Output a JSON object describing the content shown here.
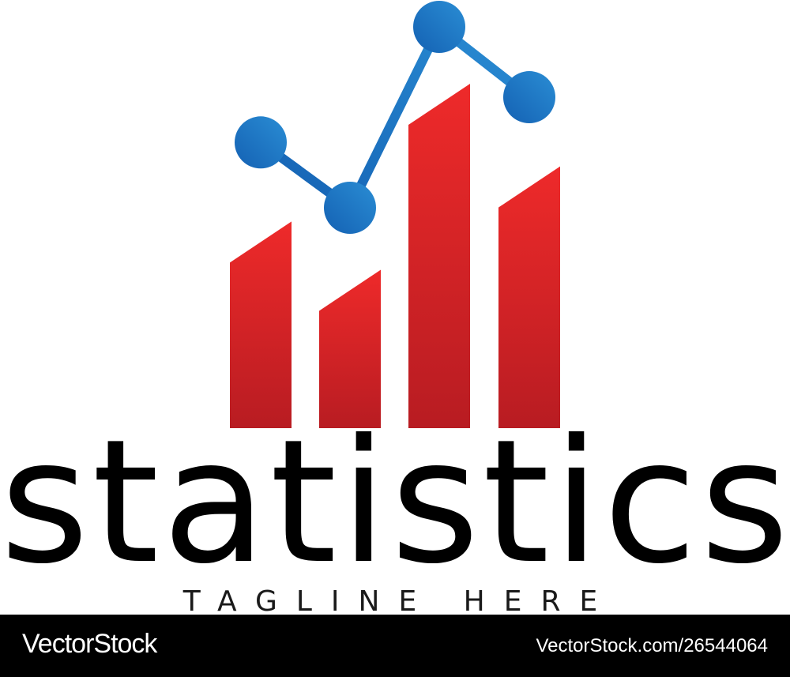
{
  "logo": {
    "icon": "bar-chart-with-trend-line-icon",
    "bar_levels": [
      0.6,
      0.46,
      1.0,
      0.76
    ],
    "line_levels": [
      0.77,
      0.64,
      1.0,
      0.86
    ],
    "colors": {
      "bar_top": "#ee2a2a",
      "bar_bottom": "#b81c22",
      "line_start": "#1461b3",
      "line_end": "#2a8dd4"
    }
  },
  "wordmark": "statistics",
  "tagline": "TAGLINE HERE",
  "footer": {
    "brand": "VectorStock",
    "image_id": "VectorStock.com/26544064",
    "background": "#000000"
  }
}
